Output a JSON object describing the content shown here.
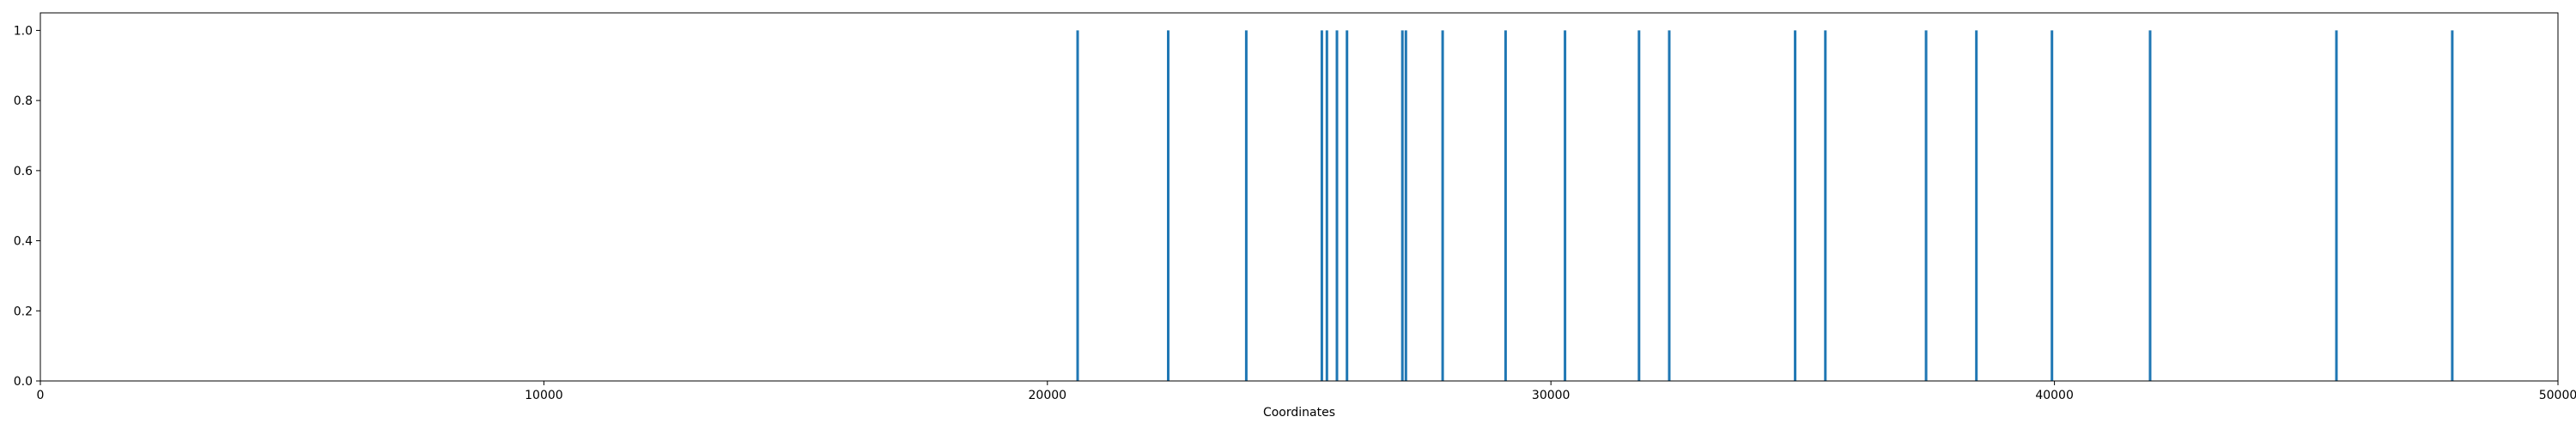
{
  "chart_data": {
    "type": "bar",
    "title": "",
    "xlabel": "Coordinates",
    "ylabel": "",
    "xlim": [
      0,
      50000
    ],
    "ylim": [
      0.0,
      1.05
    ],
    "grid": false,
    "x_ticks": [
      0,
      10000,
      20000,
      30000,
      40000,
      50000
    ],
    "x_tick_labels": [
      "0",
      "10000",
      "20000",
      "30000",
      "40000",
      "50000"
    ],
    "y_ticks": [
      0.0,
      0.2,
      0.4,
      0.6,
      0.8,
      1.0
    ],
    "y_tick_labels": [
      "0.0",
      "0.2",
      "0.4",
      "0.6",
      "0.8",
      "1.0"
    ],
    "bar_color": "#1f77b4",
    "bars": [
      {
        "x": 20600,
        "value": 1.0
      },
      {
        "x": 22400,
        "value": 1.0
      },
      {
        "x": 23950,
        "value": 1.0
      },
      {
        "x": 25450,
        "value": 1.0
      },
      {
        "x": 25550,
        "value": 1.0
      },
      {
        "x": 25750,
        "value": 1.0
      },
      {
        "x": 25950,
        "value": 1.0
      },
      {
        "x": 27050,
        "value": 1.0
      },
      {
        "x": 27120,
        "value": 1.0
      },
      {
        "x": 27850,
        "value": 1.0
      },
      {
        "x": 29100,
        "value": 1.0
      },
      {
        "x": 30280,
        "value": 1.0
      },
      {
        "x": 31750,
        "value": 1.0
      },
      {
        "x": 32350,
        "value": 1.0
      },
      {
        "x": 34850,
        "value": 1.0
      },
      {
        "x": 35450,
        "value": 1.0
      },
      {
        "x": 37450,
        "value": 1.0
      },
      {
        "x": 38450,
        "value": 1.0
      },
      {
        "x": 39950,
        "value": 1.0
      },
      {
        "x": 41900,
        "value": 1.0
      },
      {
        "x": 45600,
        "value": 1.0
      },
      {
        "x": 47900,
        "value": 1.0
      }
    ]
  }
}
